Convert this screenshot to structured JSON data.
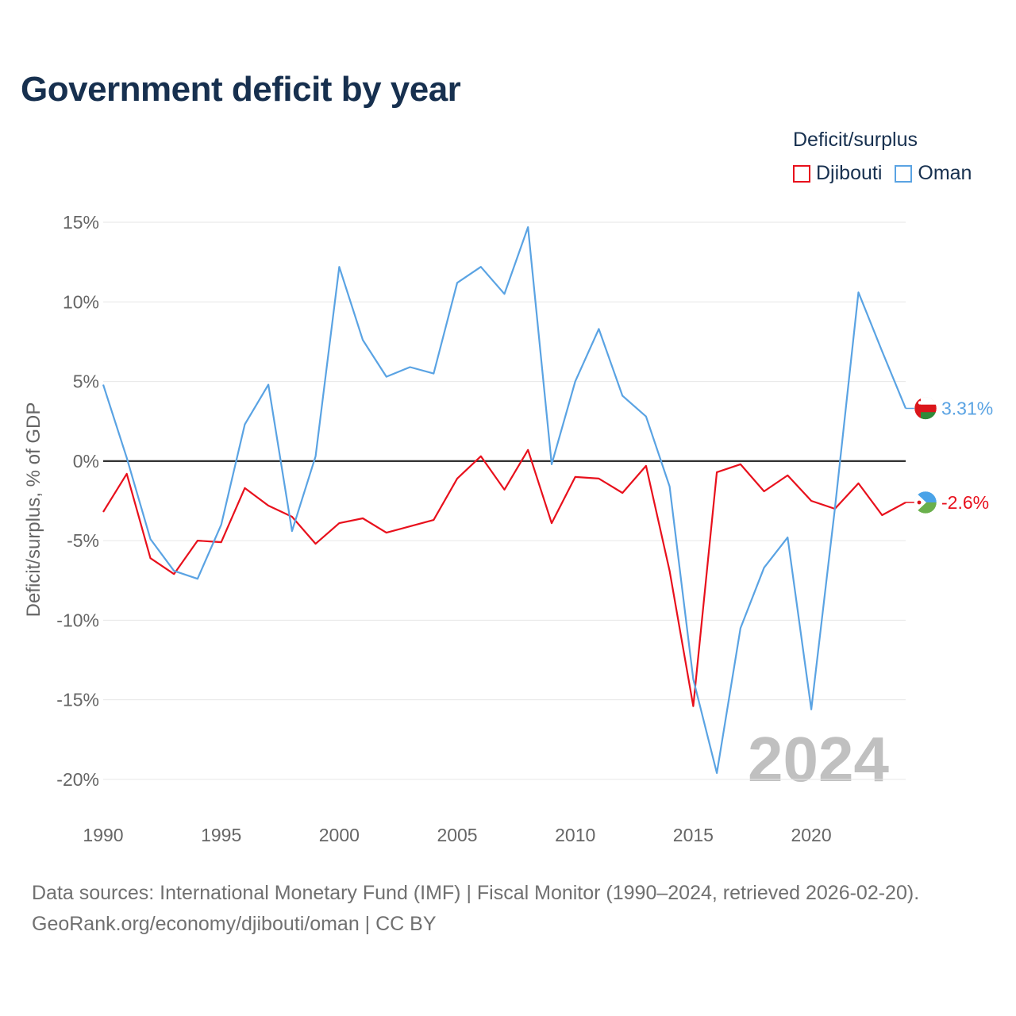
{
  "header": {
    "title": "Government deficit by year"
  },
  "legend": {
    "title": "Deficit/surplus",
    "items": [
      {
        "label": "Djibouti",
        "color": "#e8101c"
      },
      {
        "label": "Oman",
        "color": "#5aa3e3"
      }
    ]
  },
  "footer": {
    "line1": "Data sources: International Monetary Fund (IMF) | Fiscal Monitor (1990–2024, retrieved 2026-02-20).",
    "line2": "GeoRank.org/economy/djibouti/oman | CC BY"
  },
  "chart_data": {
    "type": "line",
    "title": "Government deficit by year",
    "xlabel": "",
    "ylabel": "Deficit/surplus, % of GDP",
    "year_stamp": "2024",
    "x": [
      1990,
      1991,
      1992,
      1993,
      1994,
      1995,
      1996,
      1997,
      1998,
      1999,
      2000,
      2001,
      2002,
      2003,
      2004,
      2005,
      2006,
      2007,
      2008,
      2009,
      2010,
      2011,
      2012,
      2013,
      2014,
      2015,
      2016,
      2017,
      2018,
      2019,
      2020,
      2021,
      2022,
      2023,
      2024
    ],
    "xlim": [
      1990,
      2024
    ],
    "ylim": [
      -21.5,
      16
    ],
    "x_ticks": [
      1990,
      1995,
      2000,
      2005,
      2010,
      2015,
      2020
    ],
    "y_ticks": [
      15,
      10,
      5,
      0,
      -5,
      -10,
      -15,
      -20
    ],
    "y_tick_labels": [
      "15%",
      "10%",
      "5%",
      "0%",
      "-5%",
      "-10%",
      "-15%",
      "-20%"
    ],
    "series": [
      {
        "name": "Djibouti",
        "color": "#e8101c",
        "end_label": "-2.6%",
        "values": [
          -3.2,
          -0.8,
          -6.1,
          -7.1,
          -5.0,
          -5.1,
          -1.7,
          -2.8,
          -3.5,
          -5.2,
          -3.9,
          -3.6,
          -4.5,
          -4.1,
          -3.7,
          -1.1,
          0.3,
          -1.8,
          0.7,
          -3.9,
          -1.0,
          -1.1,
          -2.0,
          -0.3,
          -6.9,
          -15.4,
          -0.7,
          -0.2,
          -1.9,
          -0.9,
          -2.5,
          -3.0,
          -1.4,
          -3.4,
          -2.6
        ]
      },
      {
        "name": "Oman",
        "color": "#5aa3e3",
        "end_label": "3.31%",
        "values": [
          4.8,
          0.2,
          -4.9,
          -6.9,
          -7.4,
          -4.0,
          2.3,
          4.8,
          -4.4,
          0.3,
          12.2,
          7.6,
          5.3,
          5.9,
          5.5,
          11.2,
          12.2,
          10.5,
          14.7,
          -0.2,
          5.0,
          8.3,
          4.1,
          2.8,
          -1.6,
          -13.7,
          -19.6,
          -10.5,
          -6.7,
          -4.8,
          -15.6,
          -3.0,
          10.6,
          6.9,
          3.31
        ]
      }
    ]
  }
}
